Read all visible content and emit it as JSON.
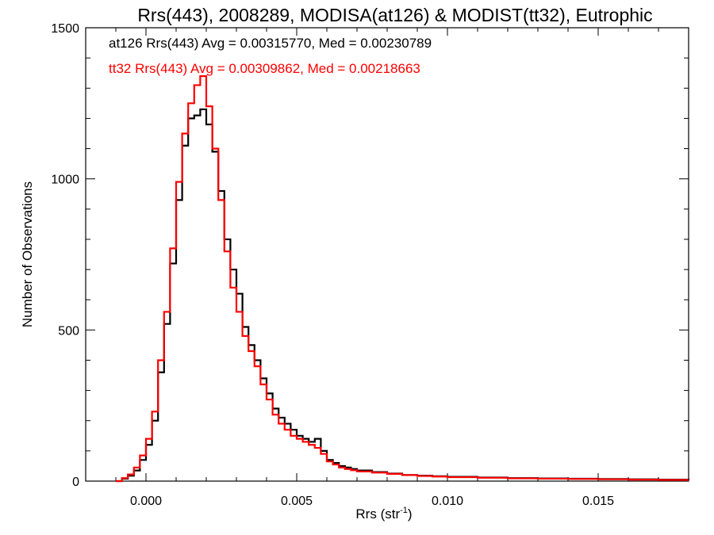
{
  "chart_data": {
    "type": "line",
    "title": "Rrs(443), 2008289, MODISA(at126) & MODIST(tt32), Eutrophic",
    "xlabel": "Rrs (str",
    "xlabel_sup": "-1",
    "xlabel_end": ")",
    "ylabel": "Number of Observations",
    "xlim": [
      -0.002,
      0.018
    ],
    "ylim": [
      0,
      1500
    ],
    "xticks": [
      0.0,
      0.005,
      0.01,
      0.015
    ],
    "xtick_labels": [
      "0.000",
      "0.005",
      "0.010",
      "0.015"
    ],
    "yticks": [
      0,
      500,
      1000,
      1500
    ],
    "ytick_labels": [
      "0",
      "500",
      "1000",
      "1500"
    ],
    "grid": false,
    "annotations": [
      {
        "text": "at126 Rrs(443) Avg = 0.00315770, Med = 0.00230789",
        "color": "#000000"
      },
      {
        "text": "tt32 Rrs(443) Avg = 0.00309862, Med = 0.00218663",
        "color": "#ff0000"
      }
    ],
    "series": [
      {
        "name": "at126",
        "color": "#000000",
        "x": [
          -0.001,
          -0.0008,
          -0.0006,
          -0.0004,
          -0.0002,
          0.0,
          0.0002,
          0.0004,
          0.0006,
          0.0008,
          0.001,
          0.0012,
          0.0014,
          0.0016,
          0.0018,
          0.002,
          0.0022,
          0.0024,
          0.0026,
          0.0028,
          0.003,
          0.0032,
          0.0034,
          0.0036,
          0.0038,
          0.004,
          0.0042,
          0.0044,
          0.0046,
          0.0048,
          0.005,
          0.0052,
          0.0054,
          0.0056,
          0.0058,
          0.006,
          0.0062,
          0.0064,
          0.0066,
          0.0068,
          0.007,
          0.0075,
          0.008,
          0.0085,
          0.009,
          0.0095,
          0.01,
          0.011,
          0.012,
          0.013,
          0.014,
          0.015,
          0.016,
          0.017,
          0.018
        ],
        "values": [
          0,
          8,
          18,
          35,
          70,
          120,
          200,
          360,
          520,
          720,
          930,
          1110,
          1200,
          1210,
          1230,
          1180,
          1090,
          960,
          800,
          700,
          620,
          510,
          450,
          400,
          340,
          290,
          240,
          210,
          190,
          170,
          150,
          140,
          130,
          140,
          100,
          70,
          60,
          50,
          45,
          40,
          35,
          30,
          25,
          20,
          18,
          16,
          14,
          12,
          10,
          9,
          8,
          7,
          6,
          5,
          4
        ]
      },
      {
        "name": "tt32",
        "color": "#ff0000",
        "x": [
          -0.001,
          -0.0008,
          -0.0006,
          -0.0004,
          -0.0002,
          0.0,
          0.0002,
          0.0004,
          0.0006,
          0.0008,
          0.001,
          0.0012,
          0.0014,
          0.0016,
          0.0018,
          0.002,
          0.0022,
          0.0024,
          0.0026,
          0.0028,
          0.003,
          0.0032,
          0.0034,
          0.0036,
          0.0038,
          0.004,
          0.0042,
          0.0044,
          0.0046,
          0.0048,
          0.005,
          0.0052,
          0.0054,
          0.0056,
          0.0058,
          0.006,
          0.0062,
          0.0064,
          0.0066,
          0.0068,
          0.007,
          0.0075,
          0.008,
          0.0085,
          0.009,
          0.0095,
          0.01,
          0.011,
          0.012,
          0.013,
          0.014,
          0.015,
          0.016,
          0.017,
          0.018
        ],
        "values": [
          0,
          10,
          22,
          45,
          85,
          140,
          230,
          400,
          560,
          770,
          990,
          1150,
          1250,
          1310,
          1340,
          1240,
          1100,
          930,
          760,
          640,
          560,
          480,
          430,
          380,
          320,
          270,
          220,
          190,
          170,
          150,
          140,
          130,
          120,
          110,
          90,
          65,
          55,
          45,
          40,
          36,
          32,
          28,
          24,
          20,
          17,
          15,
          13,
          11,
          9,
          8,
          7,
          6,
          5,
          4,
          4
        ]
      }
    ]
  }
}
